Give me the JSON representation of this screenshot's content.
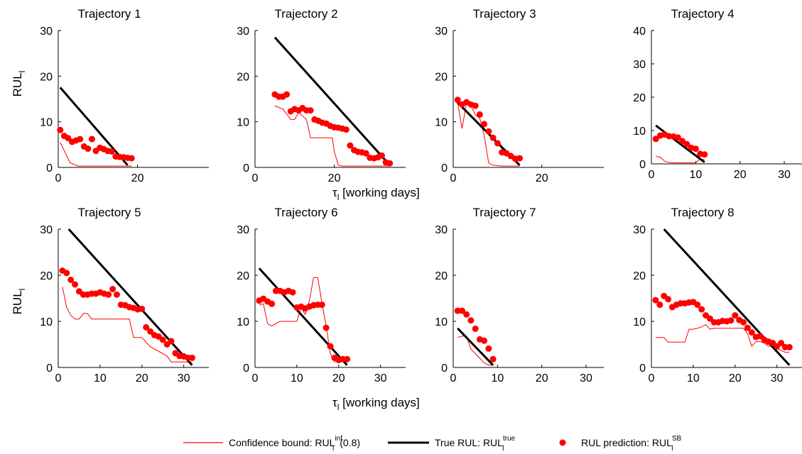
{
  "figure": {
    "ylabel_row1": "RUL",
    "ylabel_row1_sub": "l",
    "ylabel_row2": "RUL",
    "ylabel_row2_sub": "l",
    "xlabel_top_tau": "τ",
    "xlabel_top_sub": "l",
    "xlabel_top_text": " [working days]",
    "xlabel_bottom_tau": "τ",
    "xlabel_bottom_sub": "l",
    "xlabel_bottom_text": " [working days]"
  },
  "legend": {
    "confidence_prefix": "Confidence bound: RUL",
    "confidence_sup": "inf",
    "confidence_sub": "l",
    "confidence_suffix": "(0.8)",
    "true_prefix": "True RUL: RUL",
    "true_sup": "true",
    "true_sub": "l",
    "pred_prefix": "RUL prediction: RUL",
    "pred_sup": "SB",
    "pred_sub": "l",
    "colors": {
      "confidence": "#ff0000",
      "true": "#000000",
      "prediction": "#ff0000"
    }
  },
  "chart_data": [
    {
      "type": "line",
      "title": "Trajectory 1",
      "xlim": [
        0,
        38
      ],
      "ylim": [
        0,
        30
      ],
      "xticks": [
        0,
        20
      ],
      "yticks": [
        0,
        10,
        20,
        30
      ],
      "true": {
        "x": [
          0.5,
          17.5
        ],
        "y": [
          17.5,
          0.5
        ]
      },
      "bound": {
        "x": [
          0.5,
          3,
          5,
          8,
          11,
          17,
          18.5
        ],
        "y": [
          5.5,
          1,
          0.3,
          0.3,
          0.3,
          0.3,
          0.3
        ]
      },
      "pred": {
        "x": [
          0.5,
          1.5,
          2.5,
          3.5,
          4.5,
          5.5,
          6.5,
          7.5,
          8.5,
          9.5,
          10.5,
          11.5,
          12.5,
          13.5,
          14.5,
          15.5,
          16.5,
          17.5,
          18.5
        ],
        "y": [
          8.2,
          6.9,
          6.4,
          5.6,
          5.9,
          6.2,
          4.6,
          4.1,
          6.2,
          3.6,
          4.3,
          4.0,
          3.6,
          3.5,
          2.4,
          2.3,
          2.2,
          2.1,
          2.0
        ]
      }
    },
    {
      "type": "line",
      "title": "Trajectory 2",
      "xlim": [
        0,
        38
      ],
      "ylim": [
        0,
        30
      ],
      "xticks": [
        0,
        20
      ],
      "yticks": [
        0,
        10,
        20,
        30
      ],
      "true": {
        "x": [
          5,
          34
        ],
        "y": [
          28.5,
          0.5
        ]
      },
      "bound": {
        "x": [
          5,
          7,
          9,
          10,
          11,
          13,
          14,
          19.5,
          20,
          21,
          22,
          30,
          31,
          34
        ],
        "y": [
          13.5,
          12.8,
          10.5,
          10.5,
          12,
          10.5,
          6.5,
          6.5,
          3.5,
          0.5,
          0.3,
          0.3,
          0.3,
          0.3
        ]
      },
      "pred": {
        "x": [
          5,
          6,
          7,
          8,
          9,
          10,
          11,
          12,
          13,
          14,
          15,
          16,
          17,
          18,
          19,
          20,
          21,
          22,
          23,
          24,
          25,
          26,
          27,
          28,
          29,
          30,
          31,
          32,
          33,
          34
        ],
        "y": [
          16,
          15.5,
          15.5,
          16,
          12.3,
          12.8,
          12.5,
          13,
          12.5,
          12.5,
          10.5,
          10.2,
          9.8,
          9.6,
          9.1,
          8.8,
          8.7,
          8.5,
          8.3,
          4.8,
          3.8,
          3.4,
          3.3,
          3.1,
          2.1,
          2.0,
          2.2,
          2.6,
          1.1,
          0.9
        ]
      }
    },
    {
      "type": "line",
      "title": "Trajectory 3",
      "xlim": [
        0,
        34
      ],
      "ylim": [
        0,
        30
      ],
      "xticks": [
        0,
        20
      ],
      "yticks": [
        0,
        10,
        20,
        30
      ],
      "true": {
        "x": [
          1,
          15
        ],
        "y": [
          14.2,
          0.5
        ]
      },
      "bound": {
        "x": [
          1,
          2,
          3,
          4,
          5,
          6,
          7,
          8,
          9,
          11,
          13,
          15
        ],
        "y": [
          14.2,
          8.5,
          14.2,
          13.5,
          11.5,
          10.8,
          7,
          1,
          0.5,
          0.3,
          0.3,
          0.3
        ]
      },
      "pred": {
        "x": [
          1,
          2,
          3,
          4,
          5,
          6,
          7,
          8,
          9,
          10,
          11,
          12,
          13,
          14,
          15
        ],
        "y": [
          14.8,
          13.8,
          14.3,
          13.8,
          13.5,
          11.6,
          9.5,
          7.9,
          6.5,
          5.3,
          3.3,
          3.1,
          2.5,
          1.9,
          2.0
        ]
      }
    },
    {
      "type": "line",
      "title": "Trajectory 4",
      "xlim": [
        0,
        34
      ],
      "ylim": [
        0,
        40
      ],
      "xticks": [
        0,
        10,
        20,
        30
      ],
      "yticks": [
        0,
        10,
        20,
        30,
        40
      ],
      "true": {
        "x": [
          1,
          12
        ],
        "y": [
          11.5,
          0.5
        ]
      },
      "bound": {
        "x": [
          1,
          2,
          3,
          4,
          6,
          9,
          10,
          11,
          12
        ],
        "y": [
          2.3,
          2.0,
          0.8,
          0.4,
          0.3,
          0.3,
          0.3,
          1.5,
          1.2
        ]
      },
      "pred": {
        "x": [
          1,
          2,
          3,
          4,
          5,
          6,
          7,
          8,
          9,
          10,
          11,
          12
        ],
        "y": [
          7.5,
          8.5,
          8.8,
          8.3,
          8.2,
          7.9,
          6.8,
          5.9,
          4.8,
          4.5,
          3.0,
          2.8
        ]
      }
    },
    {
      "type": "line",
      "title": "Trajectory 5",
      "xlim": [
        0,
        36
      ],
      "ylim": [
        0,
        30
      ],
      "xticks": [
        0,
        10,
        20,
        30
      ],
      "yticks": [
        0,
        10,
        20,
        30
      ],
      "true": {
        "x": [
          2.5,
          32
        ],
        "y": [
          30,
          0.5
        ]
      },
      "bound": {
        "x": [
          1,
          2,
          3,
          4,
          5,
          6,
          7,
          8,
          17,
          18,
          20,
          22,
          26,
          27,
          30,
          31,
          32
        ],
        "y": [
          17.5,
          13,
          11.3,
          10.5,
          10.5,
          11.7,
          11.7,
          10.5,
          10.5,
          6.5,
          6.5,
          4.5,
          2.5,
          1.2,
          1.2,
          1.2,
          1.2
        ]
      },
      "pred": {
        "x": [
          1,
          2,
          3,
          4,
          5,
          6,
          7,
          8,
          9,
          10,
          11,
          12,
          13,
          14,
          15,
          16,
          17,
          18,
          19,
          20,
          21,
          22,
          23,
          24,
          25,
          26,
          27,
          28,
          29,
          30,
          31,
          32
        ],
        "y": [
          21,
          20.5,
          19,
          18,
          16.5,
          15.8,
          15.8,
          16,
          16,
          16.3,
          16,
          15.8,
          17,
          15.8,
          13.6,
          13.5,
          13.1,
          12.9,
          12.6,
          12.7,
          8.7,
          7.8,
          7.0,
          6.7,
          6.0,
          5.0,
          5.7,
          3.1,
          2.5,
          2.4,
          2.1,
          2.1
        ]
      }
    },
    {
      "type": "line",
      "title": "Trajectory 6",
      "xlim": [
        0,
        36
      ],
      "ylim": [
        0,
        30
      ],
      "xticks": [
        0,
        10,
        20,
        30
      ],
      "yticks": [
        0,
        10,
        20,
        30
      ],
      "true": {
        "x": [
          1,
          22
        ],
        "y": [
          21.5,
          0.5
        ]
      },
      "bound": {
        "x": [
          1,
          2,
          3,
          4,
          5,
          6,
          9,
          10,
          11,
          12,
          13,
          14,
          15,
          16,
          17,
          18,
          19,
          20,
          21,
          22
        ],
        "y": [
          13.5,
          13.8,
          9.5,
          9,
          9.5,
          10,
          10,
          10,
          13,
          11.5,
          14.5,
          19.5,
          19.5,
          14,
          9,
          3,
          1.2,
          1.5,
          1.3,
          1.2
        ]
      },
      "pred": {
        "x": [
          1,
          2,
          3,
          4,
          5,
          6,
          7,
          8,
          9,
          10,
          11,
          12,
          13,
          14,
          15,
          16,
          17,
          18,
          19,
          20,
          21,
          22
        ],
        "y": [
          14.5,
          14.9,
          14.3,
          13.8,
          16.6,
          16.6,
          16.3,
          16.6,
          16.3,
          13.0,
          13.2,
          12.8,
          13.2,
          13.5,
          13.6,
          13.6,
          8.6,
          4.6,
          2.1,
          1.6,
          1.8,
          1.8
        ]
      }
    },
    {
      "type": "line",
      "title": "Trajectory 7",
      "xlim": [
        0,
        34
      ],
      "ylim": [
        0,
        30
      ],
      "xticks": [
        0,
        10,
        20,
        30
      ],
      "yticks": [
        0,
        10,
        20,
        30
      ],
      "true": {
        "x": [
          1,
          9
        ],
        "y": [
          8.5,
          0.5
        ]
      },
      "bound": {
        "x": [
          1,
          2,
          3,
          4,
          5,
          6,
          7,
          8,
          9
        ],
        "y": [
          6.5,
          6.8,
          6.8,
          4,
          3,
          2,
          1,
          0.5,
          0.5
        ]
      },
      "pred": {
        "x": [
          1,
          2,
          3,
          4,
          5,
          6,
          7,
          8,
          9
        ],
        "y": [
          12.3,
          12.3,
          11.5,
          10.2,
          8.4,
          6.1,
          5.8,
          4.1,
          1.8
        ]
      }
    },
    {
      "type": "line",
      "title": "Trajectory 8",
      "xlim": [
        0,
        36
      ],
      "ylim": [
        0,
        30
      ],
      "xticks": [
        0,
        10,
        20,
        30
      ],
      "yticks": [
        0,
        10,
        20,
        30
      ],
      "true": {
        "x": [
          3,
          33
        ],
        "y": [
          30,
          0.5
        ]
      },
      "bound": {
        "x": [
          1,
          2,
          3,
          4,
          5,
          6,
          7,
          8,
          9,
          10,
          11,
          12,
          13,
          14,
          15,
          16,
          17,
          18,
          19,
          20,
          21,
          22,
          23,
          24,
          25,
          26,
          27,
          28,
          29,
          30,
          31,
          32,
          33
        ],
        "y": [
          6.5,
          6.5,
          6.5,
          5.5,
          5.5,
          5.5,
          5.5,
          5.5,
          8.3,
          8.3,
          8.5,
          8.8,
          9.3,
          8.3,
          8.5,
          8.5,
          8.5,
          8.5,
          8.5,
          8.5,
          8.5,
          8.5,
          7.3,
          4.6,
          5.6,
          5.6,
          5.3,
          4.6,
          4.6,
          4.0,
          3.7,
          3.3,
          3.3
        ]
      },
      "pred": {
        "x": [
          1,
          2,
          3,
          4,
          5,
          6,
          7,
          8,
          9,
          10,
          11,
          12,
          13,
          14,
          15,
          16,
          17,
          18,
          19,
          20,
          21,
          22,
          23,
          24,
          25,
          26,
          27,
          28,
          29,
          30,
          31,
          32,
          33
        ],
        "y": [
          14.6,
          13.6,
          15.5,
          14.8,
          13.1,
          13.6,
          13.9,
          13.9,
          14.1,
          14.2,
          13.6,
          12.6,
          11.3,
          10.6,
          9.8,
          9.8,
          10.1,
          10.0,
          10.2,
          11.3,
          10.3,
          9.8,
          8.6,
          7.6,
          6.6,
          6.8,
          6.0,
          5.6,
          5.3,
          4.6,
          5.3,
          4.4,
          4.4
        ]
      }
    }
  ]
}
